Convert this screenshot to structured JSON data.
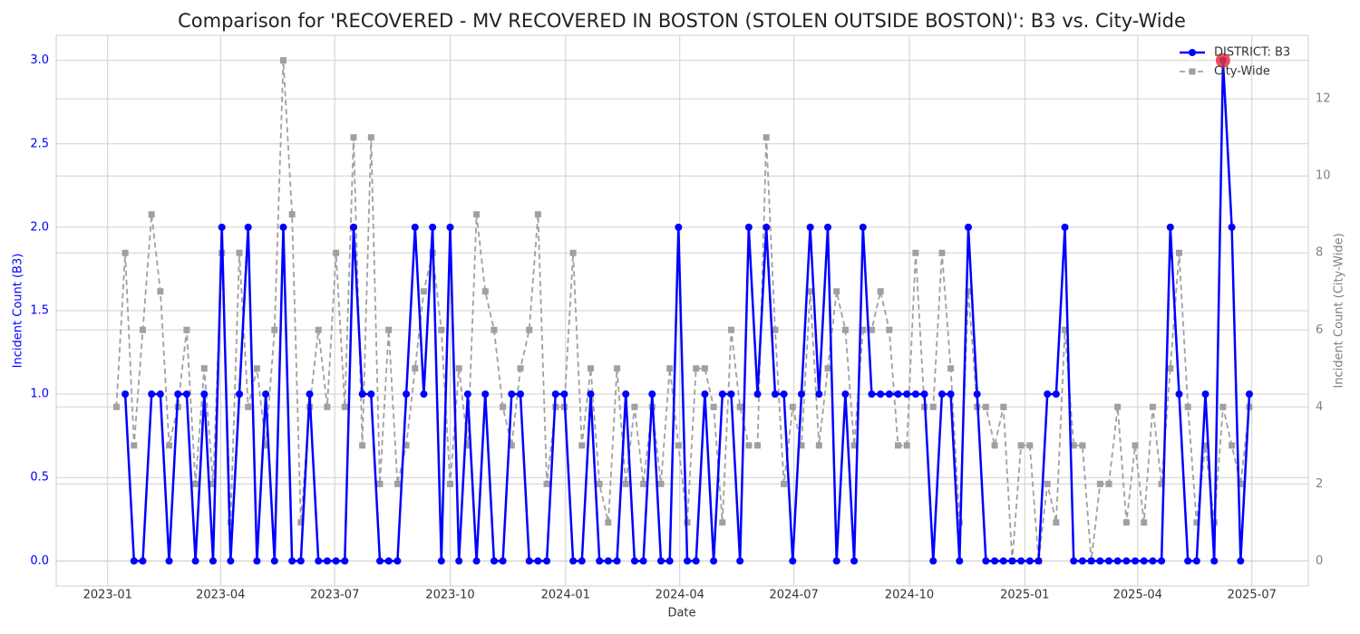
{
  "chart_data": {
    "type": "line",
    "title": "Comparison for 'RECOVERED - MV RECOVERED IN BOSTON (STOLEN OUTSIDE BOSTON)': B3 vs. City-Wide",
    "x_label": "Date",
    "y_label": "Incident Count (B3)",
    "y2_label": "Incident Count (City-Wide)",
    "x": [
      "2023-01-08",
      "2023-01-15",
      "2023-01-22",
      "2023-01-29",
      "2023-02-05",
      "2023-02-12",
      "2023-02-19",
      "2023-02-26",
      "2023-03-05",
      "2023-03-12",
      "2023-03-19",
      "2023-03-26",
      "2023-04-02",
      "2023-04-09",
      "2023-04-16",
      "2023-04-23",
      "2023-04-30",
      "2023-05-07",
      "2023-05-14",
      "2023-05-21",
      "2023-05-28",
      "2023-06-04",
      "2023-06-11",
      "2023-06-18",
      "2023-06-25",
      "2023-07-02",
      "2023-07-09",
      "2023-07-16",
      "2023-07-23",
      "2023-07-30",
      "2023-08-06",
      "2023-08-13",
      "2023-08-20",
      "2023-08-27",
      "2023-09-03",
      "2023-09-10",
      "2023-09-17",
      "2023-09-24",
      "2023-10-01",
      "2023-10-08",
      "2023-10-15",
      "2023-10-22",
      "2023-10-29",
      "2023-11-05",
      "2023-11-12",
      "2023-11-19",
      "2023-11-26",
      "2023-12-03",
      "2023-12-10",
      "2023-12-17",
      "2023-12-24",
      "2023-12-31",
      "2024-01-07",
      "2024-01-14",
      "2024-01-21",
      "2024-01-28",
      "2024-02-04",
      "2024-02-11",
      "2024-02-18",
      "2024-02-25",
      "2024-03-03",
      "2024-03-10",
      "2024-03-17",
      "2024-03-24",
      "2024-03-31",
      "2024-04-07",
      "2024-04-14",
      "2024-04-21",
      "2024-04-28",
      "2024-05-05",
      "2024-05-12",
      "2024-05-19",
      "2024-05-26",
      "2024-06-02",
      "2024-06-09",
      "2024-06-16",
      "2024-06-23",
      "2024-06-30",
      "2024-07-07",
      "2024-07-14",
      "2024-07-21",
      "2024-07-28",
      "2024-08-04",
      "2024-08-11",
      "2024-08-18",
      "2024-08-25",
      "2024-09-01",
      "2024-09-08",
      "2024-09-15",
      "2024-09-22",
      "2024-09-29",
      "2024-10-06",
      "2024-10-13",
      "2024-10-20",
      "2024-10-27",
      "2024-11-03",
      "2024-11-10",
      "2024-11-17",
      "2024-11-24",
      "2024-12-01",
      "2024-12-08",
      "2024-12-15",
      "2024-12-22",
      "2024-12-29",
      "2025-01-05",
      "2025-01-12",
      "2025-01-19",
      "2025-01-26",
      "2025-02-02",
      "2025-02-09",
      "2025-02-16",
      "2025-02-23",
      "2025-03-02",
      "2025-03-09",
      "2025-03-16",
      "2025-03-23",
      "2025-03-30",
      "2025-04-06",
      "2025-04-13",
      "2025-04-20",
      "2025-04-27",
      "2025-05-04",
      "2025-05-11",
      "2025-05-18",
      "2025-05-25",
      "2025-06-01",
      "2025-06-08",
      "2025-06-15",
      "2025-06-22",
      "2025-06-29"
    ],
    "series": [
      {
        "name": "DISTRICT: B3",
        "color": "#0000ff",
        "marker": "circle",
        "dashed": false,
        "axis": "y",
        "values": [
          null,
          1,
          0,
          0,
          1,
          1,
          0,
          1,
          1,
          0,
          1,
          0,
          2,
          0,
          1,
          2,
          0,
          1,
          0,
          2,
          0,
          0,
          1,
          0,
          0,
          0,
          0,
          2,
          1,
          1,
          0,
          0,
          0,
          1,
          2,
          1,
          2,
          0,
          2,
          0,
          1,
          0,
          1,
          0,
          0,
          1,
          1,
          0,
          0,
          0,
          1,
          1,
          0,
          0,
          1,
          0,
          0,
          0,
          1,
          0,
          0,
          1,
          0,
          0,
          2,
          0,
          0,
          1,
          0,
          1,
          1,
          0,
          2,
          1,
          2,
          1,
          1,
          0,
          1,
          2,
          1,
          2,
          0,
          1,
          0,
          2,
          1,
          1,
          1,
          1,
          1,
          1,
          1,
          0,
          1,
          1,
          0,
          2,
          1,
          0,
          0,
          0,
          0,
          0,
          0,
          0,
          1,
          1,
          2,
          0,
          0,
          0,
          0,
          0,
          0,
          0,
          0,
          0,
          0,
          0,
          2,
          1,
          0,
          0,
          1,
          0,
          3,
          2,
          0,
          1
        ]
      },
      {
        "name": "City-Wide",
        "color": "#a0a0a0",
        "marker": "square",
        "dashed": true,
        "axis": "y2",
        "values": [
          4,
          8,
          3,
          6,
          9,
          7,
          3,
          4,
          6,
          2,
          5,
          2,
          8,
          1,
          8,
          4,
          5,
          3,
          6,
          13,
          9,
          1,
          4,
          6,
          4,
          8,
          4,
          11,
          3,
          11,
          2,
          6,
          2,
          3,
          5,
          7,
          8,
          6,
          2,
          5,
          3,
          9,
          7,
          6,
          4,
          3,
          5,
          6,
          9,
          2,
          4,
          4,
          8,
          3,
          5,
          2,
          1,
          5,
          2,
          4,
          2,
          4,
          2,
          5,
          3,
          1,
          5,
          5,
          4,
          1,
          6,
          4,
          3,
          3,
          11,
          6,
          2,
          4,
          3,
          7,
          3,
          5,
          7,
          6,
          3,
          6,
          6,
          7,
          6,
          3,
          3,
          8,
          4,
          4,
          8,
          5,
          1,
          7,
          4,
          4,
          3,
          4,
          0,
          3,
          3,
          0,
          2,
          1,
          6,
          3,
          3,
          0,
          2,
          2,
          4,
          1,
          3,
          1,
          4,
          2,
          5,
          8,
          4,
          1,
          3,
          1,
          4,
          3,
          2,
          4
        ]
      }
    ],
    "highlight_color": "#e8323c",
    "xlim": [
      "2022-11-21",
      "2025-08-15"
    ],
    "xticks": [
      "2023-01",
      "2023-04",
      "2023-07",
      "2023-10",
      "2024-01",
      "2024-04",
      "2024-07",
      "2024-10",
      "2025-01",
      "2025-04",
      "2025-07"
    ],
    "ylim": [
      -0.15,
      3.15
    ],
    "yticks": [
      {
        "value": 0,
        "label": "0.0"
      },
      {
        "value": 0.5,
        "label": "0.5"
      },
      {
        "value": 1,
        "label": "1.0"
      },
      {
        "value": 1.5,
        "label": "1.5"
      },
      {
        "value": 2,
        "label": "2.0"
      },
      {
        "value": 2.5,
        "label": "2.5"
      },
      {
        "value": 3,
        "label": "3.0"
      }
    ],
    "y2lim": [
      -0.65,
      13.65
    ],
    "y2ticks": [
      0,
      2,
      4,
      6,
      8,
      10,
      12
    ],
    "y_color": "#0000ff",
    "y2_color": "#808080",
    "grid": true,
    "legend": "upper right"
  }
}
